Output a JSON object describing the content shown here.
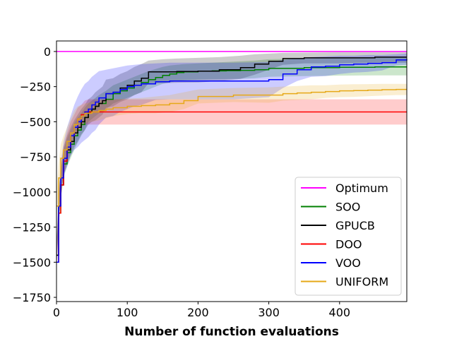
{
  "chart_data": {
    "type": "line",
    "title": "",
    "xlabel": "Number of function evaluations",
    "ylabel": "",
    "xlim": [
      0,
      495
    ],
    "ylim": [
      -1780,
      75
    ],
    "xticks": [
      0,
      100,
      200,
      300,
      400
    ],
    "yticks": [
      0,
      -250,
      -500,
      -750,
      -1000,
      -1250,
      -1500,
      -1750
    ],
    "legend_position": "lower-right",
    "grid": false,
    "series": [
      {
        "name": "Optimum",
        "color": "#ff00ff",
        "x": [
          0,
          495
        ],
        "y": [
          0,
          0
        ]
      },
      {
        "name": "SOO",
        "color": "#008000",
        "x": [
          0,
          3,
          6,
          10,
          15,
          20,
          25,
          30,
          35,
          40,
          45,
          50,
          55,
          60,
          70,
          80,
          90,
          100,
          110,
          120,
          130,
          140,
          150,
          160,
          170,
          180,
          200,
          220,
          240,
          260,
          280,
          300,
          350,
          400,
          450,
          495
        ],
        "y": [
          -1450,
          -1150,
          -950,
          -800,
          -720,
          -660,
          -600,
          -560,
          -520,
          -470,
          -430,
          -410,
          -390,
          -370,
          -340,
          -300,
          -280,
          -260,
          -240,
          -220,
          -200,
          -185,
          -170,
          -160,
          -150,
          -145,
          -140,
          -138,
          -136,
          -134,
          -130,
          -120,
          -115,
          -112,
          -110,
          -110
        ],
        "upper": [
          -1380,
          -1050,
          -850,
          -700,
          -620,
          -560,
          -510,
          -470,
          -440,
          -400,
          -370,
          -350,
          -330,
          -310,
          -280,
          -240,
          -220,
          -200,
          -180,
          -160,
          -140,
          -125,
          -110,
          -100,
          -95,
          -90,
          -85,
          -80,
          -75,
          -70,
          -65,
          -55,
          -50,
          -45,
          -40,
          -40
        ],
        "lower": [
          -1520,
          -1250,
          -1050,
          -900,
          -820,
          -760,
          -700,
          -650,
          -600,
          -560,
          -500,
          -480,
          -460,
          -440,
          -410,
          -370,
          -350,
          -330,
          -310,
          -290,
          -270,
          -250,
          -230,
          -220,
          -210,
          -205,
          -200,
          -198,
          -196,
          -194,
          -190,
          -180,
          -175,
          -172,
          -170,
          -170
        ]
      },
      {
        "name": "GPUCB",
        "color": "#000000",
        "x": [
          0,
          3,
          6,
          10,
          15,
          20,
          25,
          30,
          35,
          40,
          45,
          50,
          55,
          60,
          65,
          70,
          80,
          90,
          100,
          110,
          120,
          130,
          150,
          170,
          200,
          230,
          260,
          280,
          300,
          320,
          350,
          400,
          450,
          495
        ],
        "y": [
          -1450,
          -1100,
          -950,
          -780,
          -700,
          -640,
          -580,
          -540,
          -500,
          -470,
          -430,
          -410,
          -390,
          -370,
          -350,
          -300,
          -290,
          -260,
          -240,
          -210,
          -190,
          -145,
          -145,
          -142,
          -140,
          -130,
          -115,
          -90,
          -70,
          -50,
          -45,
          -45,
          -40,
          -40
        ],
        "upper": [
          -1380,
          -1000,
          -850,
          -680,
          -600,
          -540,
          -490,
          -450,
          -410,
          -380,
          -340,
          -320,
          -290,
          -270,
          -250,
          -200,
          -190,
          -160,
          -140,
          -110,
          -90,
          -65,
          -55,
          -50,
          -45,
          -40,
          -30,
          -20,
          -15,
          -10,
          -8,
          -5,
          -5,
          -5
        ],
        "lower": [
          -1520,
          -1200,
          -1050,
          -880,
          -800,
          -740,
          -680,
          -640,
          -590,
          -560,
          -520,
          -500,
          -490,
          -470,
          -450,
          -400,
          -390,
          -360,
          -340,
          -310,
          -290,
          -225,
          -225,
          -222,
          -220,
          -210,
          -195,
          -165,
          -130,
          -95,
          -85,
          -85,
          -80,
          -80
        ]
      },
      {
        "name": "DOO",
        "color": "#ff0000",
        "x": [
          0,
          3,
          6,
          10,
          15,
          20,
          25,
          30,
          35,
          40,
          45,
          50,
          60,
          80,
          100,
          150,
          200,
          300,
          400,
          495
        ],
        "y": [
          -1500,
          -1150,
          -950,
          -780,
          -680,
          -600,
          -540,
          -480,
          -450,
          -430,
          -430,
          -430,
          -430,
          -430,
          -430,
          -430,
          -430,
          -430,
          -430,
          -430
        ],
        "upper": [
          -1420,
          -1050,
          -850,
          -680,
          -580,
          -500,
          -450,
          -400,
          -380,
          -350,
          -340,
          -340,
          -340,
          -340,
          -340,
          -340,
          -340,
          -340,
          -340,
          -340
        ],
        "lower": [
          -1580,
          -1250,
          -1050,
          -880,
          -780,
          -700,
          -630,
          -560,
          -530,
          -520,
          -520,
          -520,
          -520,
          -520,
          -520,
          -520,
          -520,
          -520,
          -520,
          -520
        ]
      },
      {
        "name": "VOO",
        "color": "#0000ff",
        "x": [
          0,
          3,
          6,
          10,
          15,
          20,
          25,
          30,
          35,
          40,
          45,
          50,
          55,
          60,
          70,
          80,
          90,
          100,
          110,
          120,
          140,
          160,
          180,
          200,
          250,
          300,
          320,
          340,
          360,
          380,
          400,
          420,
          440,
          460,
          480,
          495
        ],
        "y": [
          -1500,
          -1100,
          -900,
          -760,
          -680,
          -600,
          -540,
          -500,
          -460,
          -430,
          -410,
          -380,
          -360,
          -330,
          -300,
          -290,
          -270,
          -250,
          -240,
          -230,
          -215,
          -210,
          -210,
          -210,
          -210,
          -200,
          -160,
          -130,
          -110,
          -105,
          -95,
          -90,
          -85,
          -80,
          -60,
          -55
        ],
        "upper": [
          -1420,
          -1000,
          -800,
          -640,
          -540,
          -460,
          -380,
          -320,
          -270,
          -230,
          -210,
          -180,
          -160,
          -140,
          -130,
          -120,
          -110,
          -100,
          -95,
          -90,
          -85,
          -80,
          -80,
          -80,
          -80,
          -75,
          -60,
          -50,
          -40,
          -35,
          -30,
          -30,
          -25,
          -25,
          -20,
          -15
        ],
        "lower": [
          -1580,
          -1200,
          -1000,
          -880,
          -820,
          -740,
          -700,
          -680,
          -650,
          -630,
          -610,
          -580,
          -560,
          -520,
          -470,
          -460,
          -430,
          -410,
          -390,
          -380,
          -345,
          -340,
          -340,
          -340,
          -340,
          -325,
          -260,
          -210,
          -180,
          -175,
          -160,
          -150,
          -145,
          -135,
          -100,
          -95
        ]
      },
      {
        "name": "UNIFORM",
        "color": "#e6a817",
        "x": [
          0,
          3,
          6,
          10,
          15,
          20,
          25,
          30,
          35,
          40,
          50,
          60,
          70,
          80,
          100,
          120,
          140,
          160,
          180,
          200,
          250,
          300,
          320,
          340,
          360,
          380,
          400,
          420,
          440,
          460,
          480,
          495
        ],
        "y": [
          -1100,
          -900,
          -760,
          -700,
          -640,
          -580,
          -520,
          -480,
          -460,
          -440,
          -430,
          -420,
          -410,
          -400,
          -390,
          -385,
          -380,
          -370,
          -350,
          -320,
          -310,
          -310,
          -300,
          -295,
          -290,
          -285,
          -280,
          -278,
          -275,
          -272,
          -270,
          -270
        ],
        "upper": [
          -1000,
          -800,
          -660,
          -600,
          -540,
          -480,
          -420,
          -390,
          -380,
          -370,
          -360,
          -350,
          -345,
          -340,
          -335,
          -330,
          -320,
          -310,
          -290,
          -270,
          -260,
          -255,
          -250,
          -245,
          -240,
          -240,
          -235,
          -233,
          -232,
          -230,
          -230,
          -230
        ],
        "lower": [
          -1200,
          -1000,
          -860,
          -800,
          -740,
          -680,
          -620,
          -570,
          -540,
          -510,
          -500,
          -490,
          -475,
          -460,
          -445,
          -440,
          -440,
          -430,
          -410,
          -370,
          -360,
          -365,
          -350,
          -345,
          -340,
          -330,
          -325,
          -323,
          -318,
          -314,
          -310,
          -310
        ]
      }
    ]
  }
}
